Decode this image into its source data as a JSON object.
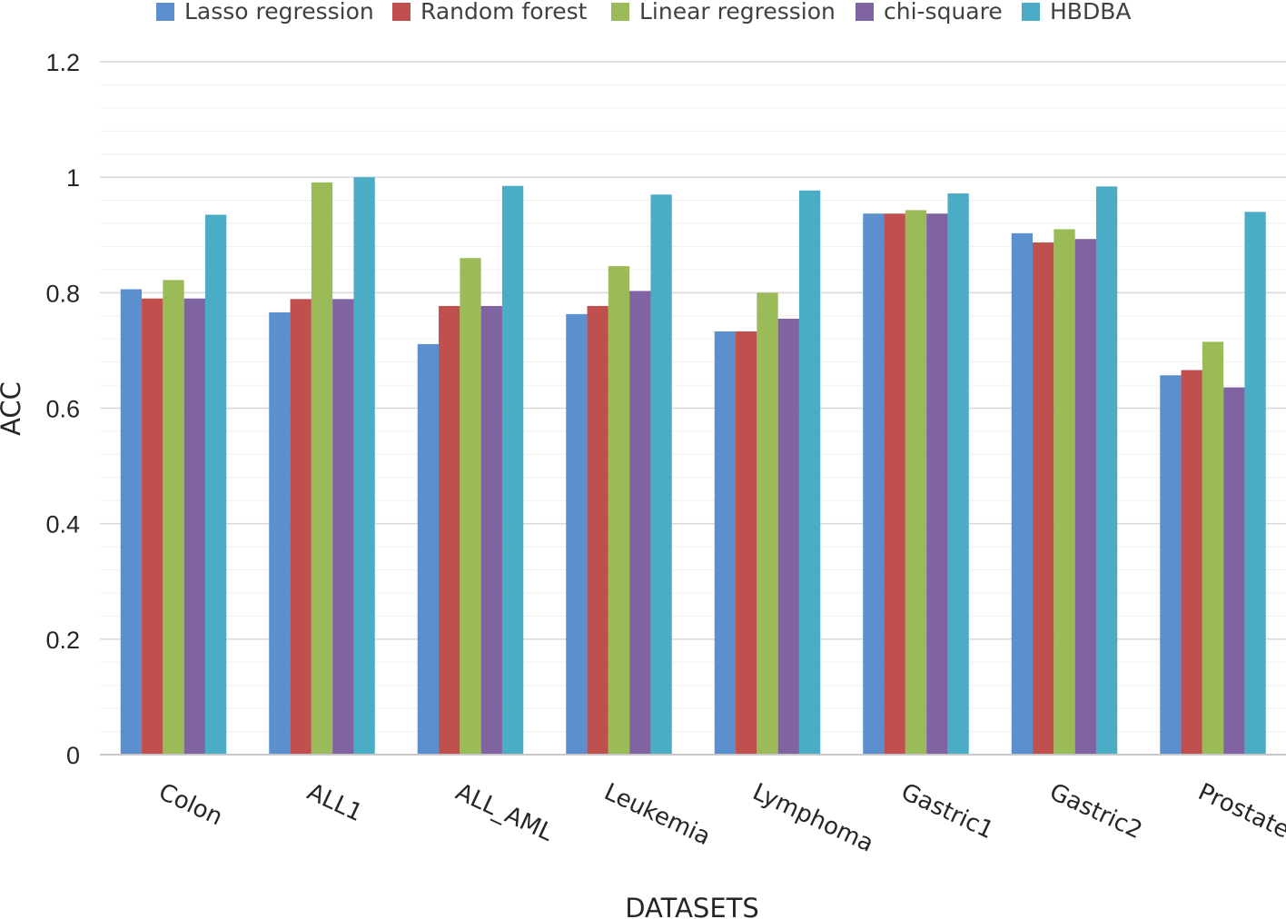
{
  "chart_data": {
    "type": "bar",
    "title": "",
    "xlabel": "DATASETS",
    "ylabel": "ACC",
    "ylim": [
      0,
      1.2
    ],
    "yticks": [
      0,
      0.2,
      0.4,
      0.6,
      0.8,
      1,
      1.2
    ],
    "ytick_labels": [
      "0",
      "0.2",
      "0.4",
      "0.6",
      "0.8",
      "1",
      "1.2"
    ],
    "grid": true,
    "legend_position": "top",
    "categories": [
      "Colon",
      "ALL1",
      "ALL_AML",
      "Leukemia",
      "Lymphoma",
      "Gastric1",
      "Gastric2",
      "Prostate"
    ],
    "series": [
      {
        "name": "Lasso regression",
        "color": "#5B8FCD",
        "values": [
          0.806,
          0.766,
          0.711,
          0.763,
          0.733,
          0.937,
          0.903,
          0.657
        ]
      },
      {
        "name": "Random forest",
        "color": "#C0504D",
        "values": [
          0.79,
          0.789,
          0.777,
          0.777,
          0.733,
          0.937,
          0.887,
          0.666
        ]
      },
      {
        "name": "Linear regression",
        "color": "#9BBB59",
        "values": [
          0.822,
          0.991,
          0.86,
          0.846,
          0.8,
          0.943,
          0.91,
          0.715
        ]
      },
      {
        "name": "chi-square",
        "color": "#8064A2",
        "values": [
          0.79,
          0.789,
          0.777,
          0.803,
          0.755,
          0.937,
          0.893,
          0.636
        ]
      },
      {
        "name": "HBDBA",
        "color": "#4BACC6",
        "values": [
          0.935,
          1.0,
          0.985,
          0.97,
          0.977,
          0.972,
          0.984,
          0.94
        ]
      }
    ]
  }
}
